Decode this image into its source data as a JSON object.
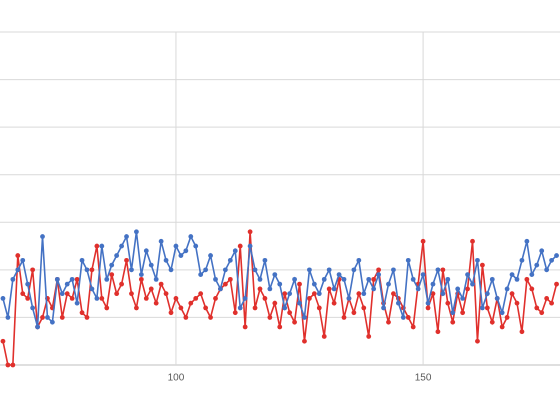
{
  "chart_data": {
    "type": "line",
    "x": [
      65,
      66,
      67,
      68,
      69,
      70,
      71,
      72,
      73,
      74,
      75,
      76,
      77,
      78,
      79,
      80,
      81,
      82,
      83,
      84,
      85,
      86,
      87,
      88,
      89,
      90,
      91,
      92,
      93,
      94,
      95,
      96,
      97,
      98,
      99,
      100,
      101,
      102,
      103,
      104,
      105,
      106,
      107,
      108,
      109,
      110,
      111,
      112,
      113,
      114,
      115,
      116,
      117,
      118,
      119,
      120,
      121,
      122,
      123,
      124,
      125,
      126,
      127,
      128,
      129,
      130,
      131,
      132,
      133,
      134,
      135,
      136,
      137,
      138,
      139,
      140,
      141,
      142,
      143,
      144,
      145,
      146,
      147,
      148,
      149,
      150,
      151,
      152,
      153,
      154,
      155,
      156,
      157,
      158,
      159,
      160,
      161,
      162,
      163,
      164,
      165,
      166,
      167,
      168,
      169,
      170,
      171,
      172,
      173,
      174,
      175,
      176,
      177
    ],
    "series": [
      {
        "color": "#4472c4",
        "values": [
          14,
          10,
          18,
          20,
          22,
          17,
          12,
          8,
          27,
          10,
          9,
          18,
          15,
          17,
          18,
          13,
          22,
          20,
          16,
          14,
          25,
          18,
          21,
          23,
          25,
          27,
          20,
          28,
          19,
          24,
          21,
          18,
          26,
          22,
          20,
          25,
          23,
          24,
          27,
          25,
          19,
          20,
          23,
          18,
          16,
          20,
          22,
          24,
          12,
          14,
          25,
          20,
          18,
          22,
          16,
          19,
          17,
          12,
          15,
          18,
          13,
          10,
          20,
          17,
          15,
          18,
          20,
          16,
          19,
          18,
          14,
          20,
          22,
          15,
          18,
          16,
          19,
          12,
          17,
          20,
          13,
          10,
          22,
          18,
          16,
          19,
          13,
          17,
          20,
          15,
          18,
          11,
          16,
          14,
          19,
          17,
          22,
          12,
          15,
          18,
          14,
          11,
          16,
          19,
          18,
          22,
          26,
          19,
          21,
          24,
          20,
          22,
          23
        ]
      },
      {
        "color": "#e0302c",
        "values": [
          5,
          0,
          0,
          23,
          15,
          14,
          20,
          8,
          10,
          14,
          12,
          18,
          10,
          15,
          14,
          18,
          11,
          10,
          20,
          25,
          14,
          12,
          19,
          15,
          17,
          22,
          15,
          12,
          18,
          14,
          16,
          13,
          17,
          15,
          11,
          14,
          12,
          10,
          13,
          14,
          15,
          12,
          10,
          14,
          16,
          17,
          18,
          11,
          25,
          8,
          28,
          12,
          16,
          14,
          10,
          13,
          8,
          15,
          11,
          9,
          17,
          5,
          14,
          15,
          12,
          6,
          16,
          13,
          18,
          10,
          14,
          11,
          15,
          12,
          6,
          18,
          20,
          13,
          9,
          15,
          14,
          12,
          10,
          8,
          17,
          26,
          12,
          15,
          7,
          20,
          13,
          9,
          15,
          11,
          16,
          26,
          5,
          21,
          12,
          9,
          14,
          8,
          10,
          15,
          13,
          7,
          18,
          16,
          12,
          11,
          14,
          13,
          17
        ]
      }
    ],
    "xlim": [
      64.4,
      177.7
    ],
    "xticks": [
      100,
      150
    ],
    "ylim": [
      0,
      70
    ],
    "yticks": [
      0,
      10,
      20,
      30,
      40,
      50,
      60,
      70
    ],
    "grid": true
  }
}
